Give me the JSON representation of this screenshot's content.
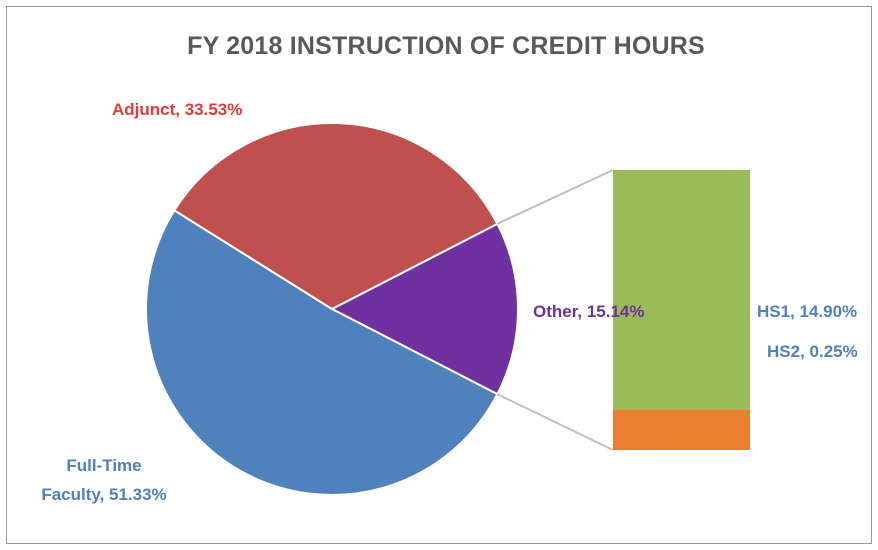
{
  "chart_data": {
    "type": "bar-of-pie",
    "title": "FY 2018 INSTRUCTION OF CREDIT HOURS",
    "pie": [
      {
        "label": "Adjunct",
        "value": 33.53,
        "value_label": "33.53%",
        "color": "#C0504D",
        "label_color": "#E53935"
      },
      {
        "label": "Other",
        "value": 15.14,
        "value_label": "15.14%",
        "color": "#7030A0",
        "label_color": "#7030A0"
      },
      {
        "label": "Full-Time Faculty",
        "value": 51.33,
        "value_label": "51.33%",
        "color": "#4F81BD",
        "label_color": "#4F81BD"
      }
    ],
    "secondary": {
      "of": "Other",
      "segments": [
        {
          "label": "HS1",
          "value": 14.9,
          "value_label": "14.90%",
          "color": "#9BBB59",
          "label_color": "#4F81BD"
        },
        {
          "label": "HS2",
          "value": 0.25,
          "value_label": "0.25%",
          "color": "#ED7D31",
          "label_color": "#4F81BD"
        }
      ]
    },
    "labels": {
      "adjunct": "Adjunct, 33.53%",
      "other": "Other, 15.14%",
      "fulltime_line1": "Full-Time",
      "fulltime_line2": "Faculty, 51.33%",
      "hs1": "HS1, 14.90%",
      "hs2": "HS2, 0.25%"
    },
    "legend": "none",
    "connector_color": "#BFBFBF"
  }
}
